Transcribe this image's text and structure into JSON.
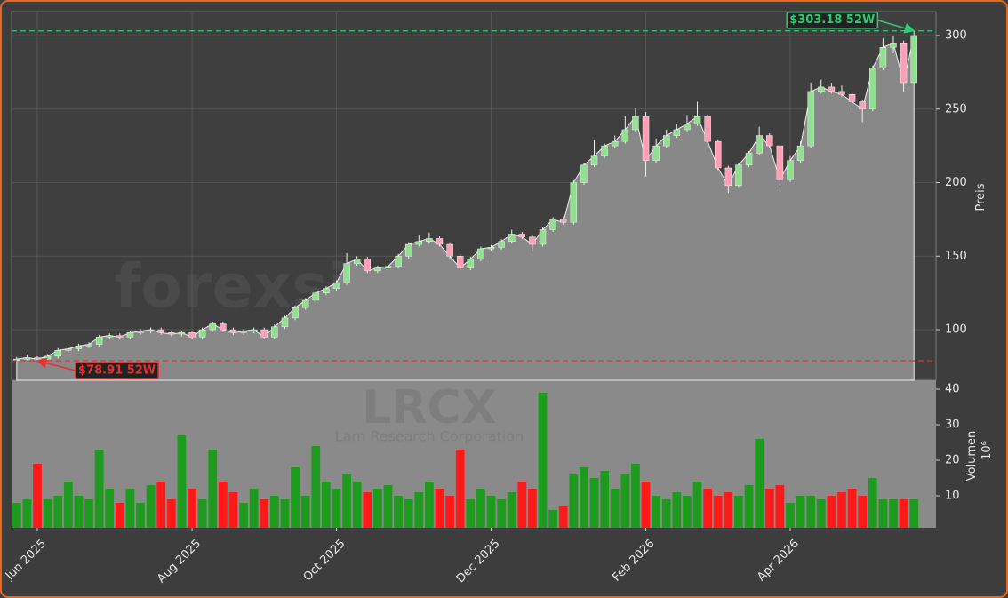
{
  "chart_data": [
    {
      "type": "candlestick",
      "title": "LRCX",
      "subtitle": "Lam Research Corporation",
      "watermark": "forexsignale.trade",
      "ylabel": "Preis",
      "open": [
        79,
        80,
        81,
        80,
        82,
        86,
        87,
        89,
        90,
        95,
        96,
        95,
        98,
        99,
        100,
        98,
        97,
        98,
        95,
        100,
        104,
        100,
        98,
        99,
        100,
        95,
        102,
        108,
        115,
        120,
        125,
        128,
        132,
        145,
        148,
        140,
        142,
        143,
        150,
        158,
        160,
        162,
        158,
        150,
        142,
        148,
        155,
        156,
        160,
        165,
        163,
        158,
        168,
        175,
        173,
        200,
        212,
        218,
        225,
        228,
        236,
        245,
        215,
        225,
        232,
        236,
        240,
        245,
        228,
        210,
        198,
        212,
        220,
        232,
        225,
        202,
        215,
        225,
        262,
        265,
        262,
        260,
        255,
        250,
        278,
        292,
        295,
        268
      ],
      "high": [
        81.5,
        83,
        82,
        83.5,
        87.5,
        88.5,
        90.5,
        91.5,
        96.5,
        97.5,
        97.5,
        99.5,
        100.5,
        101.5,
        101.5,
        99.5,
        99.5,
        99.5,
        101.5,
        105.5,
        105.5,
        101.5,
        100.5,
        101.5,
        101.5,
        103.5,
        109.5,
        116.5,
        121.5,
        126.5,
        129.5,
        133.5,
        152,
        150,
        149.5,
        143.5,
        146,
        151.5,
        159.5,
        164,
        166,
        163.5,
        159.5,
        151.5,
        149.5,
        156.5,
        157.5,
        161.5,
        168,
        166.5,
        164.5,
        169.5,
        176.5,
        177,
        201.5,
        213.5,
        229,
        226.5,
        232,
        245,
        251,
        248,
        230,
        236,
        240,
        246,
        255,
        246.5,
        229.5,
        211.5,
        213.5,
        221.5,
        238,
        233.5,
        226.5,
        218,
        228,
        268,
        270,
        268,
        266,
        261.5,
        256.5,
        279.5,
        298,
        300,
        296.5,
        303.18
      ],
      "low": [
        79,
        79.5,
        78.91,
        79.5,
        80.5,
        84.5,
        85.5,
        87.5,
        88.5,
        93.5,
        93.5,
        93.5,
        96.5,
        97.5,
        96.5,
        95.5,
        95.5,
        93.5,
        93.5,
        98.5,
        98.5,
        96.5,
        96.5,
        97.5,
        93.5,
        93.5,
        100.5,
        106.5,
        113.5,
        118.5,
        123.5,
        126.5,
        130.5,
        143.5,
        138.5,
        138.5,
        140.5,
        141.5,
        148.5,
        156.5,
        158.5,
        156.5,
        148.5,
        140.5,
        140.5,
        146.5,
        153.5,
        154.5,
        158.5,
        161.5,
        153,
        156.5,
        166.5,
        171.5,
        171.5,
        198.5,
        210.5,
        216.5,
        223.5,
        226.5,
        234.5,
        204,
        213.5,
        223.5,
        230.5,
        234.5,
        238.5,
        226.5,
        208.5,
        193,
        196.5,
        210.5,
        218.5,
        223.5,
        198,
        200.5,
        213.5,
        223.5,
        260.5,
        260.5,
        258.5,
        250,
        241,
        248.5,
        276.5,
        288,
        262,
        266.5
      ],
      "close": [
        80,
        81,
        80,
        82,
        86,
        87,
        89,
        90,
        95,
        96,
        95,
        98,
        99,
        100,
        98,
        97,
        98,
        95,
        100,
        104,
        100,
        98,
        99,
        100,
        95,
        102,
        108,
        115,
        120,
        125,
        128,
        132,
        145,
        148,
        140,
        142,
        143,
        150,
        158,
        160,
        162,
        158,
        150,
        142,
        148,
        155,
        156,
        160,
        165,
        163,
        158,
        168,
        175,
        173,
        200,
        212,
        218,
        225,
        228,
        236,
        245,
        215,
        225,
        232,
        236,
        240,
        245,
        228,
        210,
        198,
        212,
        220,
        232,
        225,
        202,
        215,
        225,
        262,
        265,
        262,
        260,
        255,
        250,
        278,
        292,
        295,
        268,
        300
      ],
      "ylim": [
        65.6,
        316.3
      ],
      "yticks": [
        100,
        150,
        200,
        250,
        300
      ],
      "grid": true,
      "up_color": "#8fe08f",
      "down_color": "#ff9eb5",
      "area_color": "#888888",
      "annotations": [
        {
          "text": "$303.18 52W",
          "value": 303.18,
          "color": "#2ecc71"
        },
        {
          "text": "$78.91 52W",
          "value": 78.91,
          "color": "#e83030"
        }
      ]
    },
    {
      "type": "bar",
      "ylabel": "Volumen",
      "ylabel_unit": "10⁶",
      "categories": [
        null,
        null,
        "Jun 2025",
        null,
        null,
        null,
        null,
        null,
        null,
        null,
        null,
        null,
        null,
        null,
        null,
        null,
        null,
        "Aug 2025",
        null,
        null,
        null,
        null,
        null,
        null,
        null,
        null,
        null,
        null,
        null,
        null,
        null,
        "Oct 2025",
        null,
        null,
        null,
        null,
        null,
        null,
        null,
        null,
        null,
        null,
        null,
        null,
        null,
        null,
        "Dec 2025",
        null,
        null,
        null,
        null,
        null,
        null,
        null,
        null,
        null,
        null,
        null,
        null,
        null,
        null,
        "Feb 2026",
        null,
        null,
        null,
        null,
        null,
        null,
        null,
        null,
        null,
        null,
        null,
        null,
        null,
        "Apr 2026",
        null,
        null,
        null,
        null,
        null,
        null,
        null,
        null,
        null,
        null,
        null,
        null
      ],
      "values": [
        8,
        9,
        19,
        9,
        10,
        14,
        10,
        9,
        23,
        12,
        8,
        12,
        8,
        13,
        14,
        9,
        27,
        12,
        9,
        23,
        14,
        11,
        8,
        12,
        9,
        10,
        9,
        18,
        10,
        24,
        14,
        12,
        16,
        14,
        11,
        12,
        13,
        10,
        9,
        11,
        14,
        12,
        10,
        23,
        9,
        12,
        10,
        9,
        11,
        14,
        12,
        39,
        6,
        7,
        16,
        18,
        15,
        17,
        12,
        16,
        19,
        14,
        10,
        9,
        11,
        10,
        14,
        12,
        10,
        11,
        10,
        13,
        26,
        12,
        13,
        8,
        10,
        10,
        9,
        10,
        11,
        12,
        10,
        15,
        9,
        9,
        9,
        9
      ],
      "ylim": [
        1,
        42.5
      ],
      "yticks": [
        10,
        20,
        30,
        40
      ],
      "up_color": "#1e9a1e",
      "down_color": "#ff1a1a",
      "panel_color": "#8a8a8a"
    }
  ]
}
